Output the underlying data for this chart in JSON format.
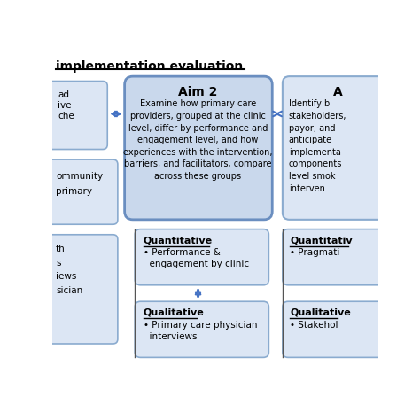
{
  "title": "implementation evaluation",
  "bg_color": "#ffffff",
  "aim2_title": "Aim 2",
  "aim2_text": "Examine how primary care\nproviders, grouped at the clinic\nlevel, differ by performance and\nengagement level, and how\nexperiences with the intervention,\nbarriers, and facilitators, compare\nacross these groups",
  "aim2_box_color": "#c9d8ec",
  "aim2_border_color": "#6a8ec0",
  "quant2_title": "Quantitative",
  "quant2_text": "• Performance &\n  engagement by clinic",
  "qual2_title": "Qualitative",
  "qual2_text": "• Primary care physician\n  interviews",
  "sub_box_color": "#dce6f4",
  "sub_border_color": "#8aabcf",
  "aim3_title": "A",
  "aim3_text": "Identify b\nstakeholders,\npayor, and\nanticipate\nimplementa\ncomponents\nlevel smok\ninterven",
  "aim3_box_color": "#dce6f4",
  "aim3_border_color": "#8aabcf",
  "quant3_title": "Quantitativ",
  "quant3_text": "• Pragmati",
  "qual3_title": "Qualitative",
  "qual3_text": "• Stakehol",
  "left_box1_color": "#dce6f4",
  "left_box1_border": "#8aabcf",
  "left_box2_color": "#dce6f4",
  "left_box2_border": "#8aabcf",
  "left_box3_color": "#dce6f4",
  "left_box3_border": "#8aabcf",
  "arrow_color": "#4472c4"
}
